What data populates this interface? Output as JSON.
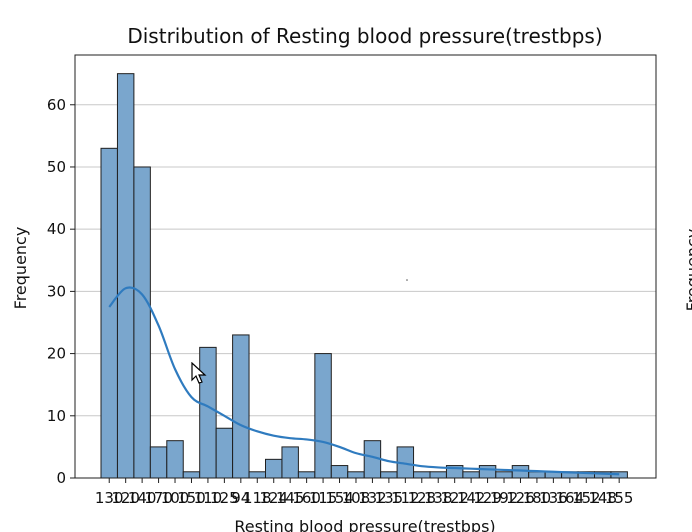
{
  "chart_data": {
    "type": "bar",
    "title": "Distribution of Resting blood pressure(trestbps)",
    "xlabel": "Resting blood pressure(trestbps)",
    "ylabel": "Frequency",
    "ylim": [
      0,
      68
    ],
    "yticks": [
      0,
      10,
      20,
      30,
      40,
      50,
      60
    ],
    "grid": "horizontal",
    "bar_color": "#7aa6cd",
    "bar_edge": "#1f1f1f",
    "kde_color": "#2f7bbf",
    "categories": [
      "130",
      "120",
      "140",
      "170",
      "100",
      "150",
      "110",
      "125",
      "94",
      "118",
      "124",
      "145",
      "160",
      "115",
      "154",
      "108",
      "132",
      "135",
      "112",
      "128",
      "138",
      "122",
      "142",
      "129",
      "192",
      "126",
      "180",
      "136",
      "164",
      "152",
      "148",
      "155"
    ],
    "values": [
      53,
      65,
      50,
      5,
      6,
      1,
      21,
      8,
      23,
      1,
      3,
      5,
      1,
      20,
      2,
      1,
      6,
      1,
      5,
      1,
      1,
      2,
      1,
      2,
      1,
      2,
      1,
      1,
      1,
      1,
      1,
      1
    ],
    "kde": [
      27.5,
      30.5,
      29.5,
      24.5,
      17.5,
      13,
      11.5,
      10,
      8.5,
      7.5,
      6.8,
      6.4,
      6.2,
      5.8,
      5,
      4,
      3.4,
      2.7,
      2.3,
      1.9,
      1.7,
      1.6,
      1.5,
      1.4,
      1.3,
      1.2,
      1.1,
      1,
      0.9,
      0.8,
      0.7,
      0.6
    ]
  },
  "right_panel": {
    "ylabel_fragment": "Frequency"
  }
}
